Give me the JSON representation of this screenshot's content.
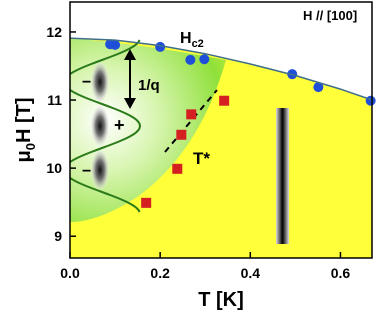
{
  "chart_data": {
    "type": "scatter",
    "xlabel": "T [K]",
    "ylabel_parts": [
      "μ",
      "0",
      "H [T]"
    ],
    "hc2_label_parts": [
      "H",
      "c2"
    ],
    "annotations": {
      "field_direction": "H // [100]",
      "wavevector": "1/q",
      "tstar": "T*",
      "plus": "+",
      "minus": "−"
    },
    "xlim": [
      0,
      0.67
    ],
    "ylim": [
      8.68,
      12.44
    ],
    "xticks": [
      {
        "value": 0,
        "label": "0.0"
      },
      0.2,
      0.4,
      0.6
    ],
    "yticks": [
      9,
      10,
      11,
      12
    ],
    "series": [
      {
        "color": "#1f4fd8",
        "marker": "circle",
        "x": [
          0.089,
          0.1,
          0.2,
          0.267,
          0.298,
          0.493,
          0.551,
          0.667
        ],
        "values": [
          11.82,
          11.81,
          11.78,
          11.59,
          11.6,
          11.38,
          11.19,
          10.99
        ]
      },
      {
        "color": "#d42020",
        "marker": "square",
        "x": [
          0.169,
          0.238,
          0.247,
          0.269,
          0.342
        ],
        "values": [
          9.49,
          9.99,
          10.49,
          10.79,
          10.99
        ]
      },
      {
        "color": "#3f6f8a",
        "marker": "line",
        "fill": "#ffff3a",
        "x": [
          0,
          0.1,
          0.2,
          0.3,
          0.4,
          0.5,
          0.6,
          0.67
        ],
        "values": [
          11.91,
          11.88,
          11.8,
          11.68,
          11.53,
          11.36,
          11.16,
          11.0
        ]
      }
    ]
  }
}
